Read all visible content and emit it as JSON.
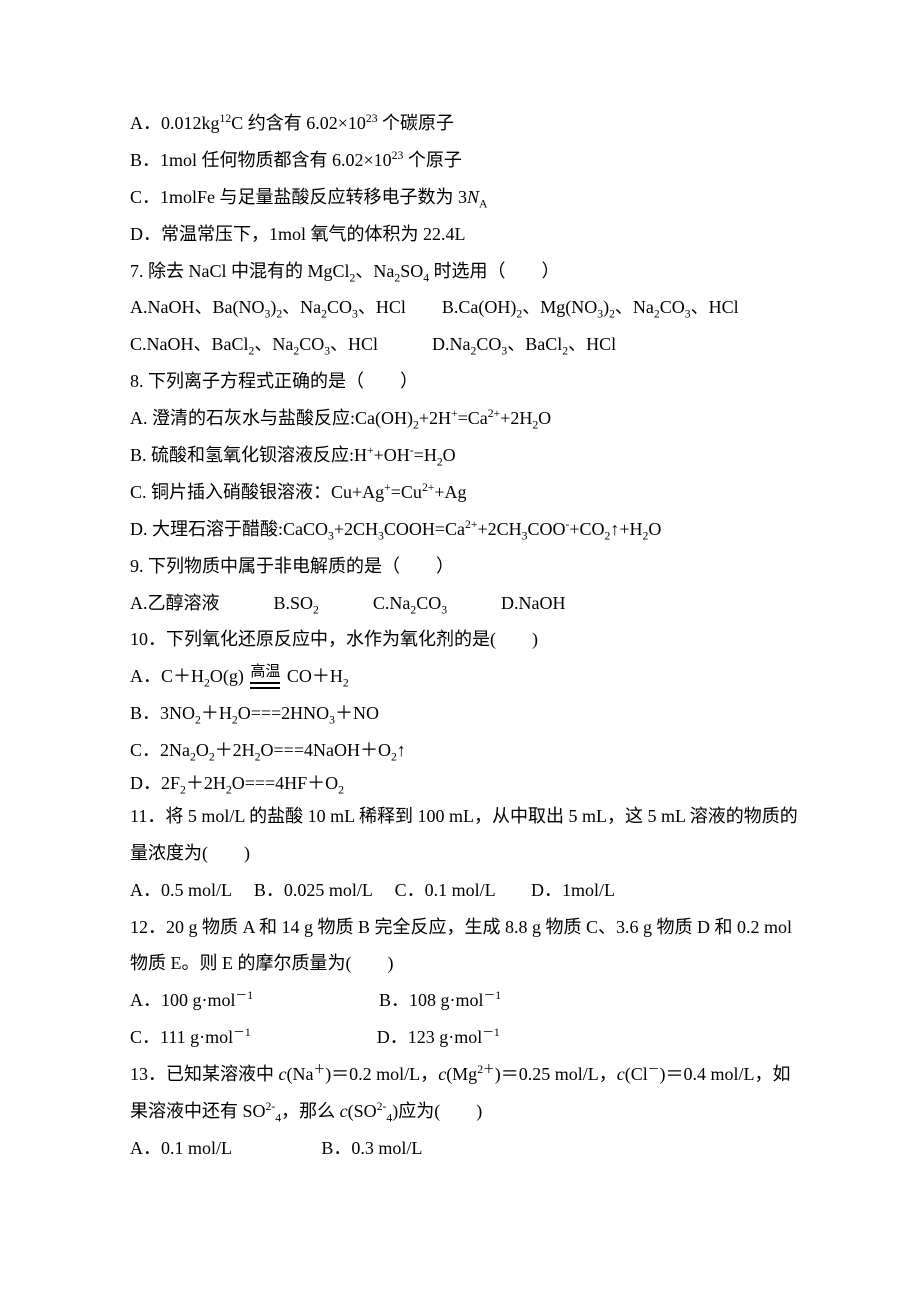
{
  "q6": {
    "optA": "A．0.012kg<sup>12</sup>C 约含有 6.02×10<sup>23</sup> 个碳原子",
    "optB": "B．1mol 任何物质都含有 6.02×10<sup>23</sup> 个原子",
    "optC": "C．1molFe 与足量盐酸反应转移电子数为 3<span class=\"italic\">N</span><sub>A</sub>",
    "optD": "D．常温常压下，1mol 氧气的体积为 22.4L"
  },
  "q7": {
    "stem": "7. 除去 NaCl 中混有的 MgCl<sub>2</sub>、Na<sub>2</sub>SO<sub>4</sub> 时选用（　　）",
    "row1": "A.NaOH、Ba(NO<sub>3</sub>)<sub>2</sub>、Na<sub>2</sub>CO<sub>3</sub>、HCl　　B.Ca(OH)<sub>2</sub>、Mg(NO<sub>3</sub>)<sub>2</sub>、Na<sub>2</sub>CO<sub>3</sub>、HCl",
    "row2": "C.NaOH、BaCl<sub>2</sub>、Na<sub>2</sub>CO<sub>3</sub>、HCl　　　D.Na<sub>2</sub>CO<sub>3</sub>、BaCl<sub>2</sub>、HCl"
  },
  "q8": {
    "stem": "8. 下列离子方程式正确的是（　　）",
    "optA": "A. 澄清的石灰水与盐酸反应:Ca(OH)<sub>2</sub>+2H<sup>+</sup>=Ca<sup>2+</sup>+2H<sub>2</sub>O",
    "optB": "B. 硫酸和氢氧化钡溶液反应:H<sup>+</sup>+OH<sup>-</sup>=H<sub>2</sub>O",
    "optC": "C. 铜片插入硝酸银溶液：Cu+Ag<sup>+</sup>=Cu<sup>2+</sup>+Ag",
    "optD": "D. 大理石溶于醋酸:CaCO<sub>3</sub>+2CH<sub>3</sub>COOH=Ca<sup>2+</sup>+2CH<sub>3</sub>COO<sup>-</sup>+CO<sub>2</sub>↑+H<sub>2</sub>O"
  },
  "q9": {
    "stem": "9. 下列物质中属于非电解质的是（　　）",
    "opts": "A.乙醇溶液　　　B.SO<sub>2</sub>　　　C.Na<sub>2</sub>CO<sub>3</sub>　　　D.NaOH"
  },
  "q10": {
    "stem": "10．下列氧化还原反应中，水作为氧化剂的是(　　)",
    "optA_pre": "A．C＋H<sub>2</sub>O(g) ",
    "optA_cond": "高温",
    "optA_post": " CO＋H<sub>2</sub>",
    "optB": "B．3NO<sub>2</sub>＋H<sub>2</sub>O===2HNO<sub>3</sub>＋NO",
    "optC": "C．2Na<sub>2</sub>O<sub>2</sub>＋2H<sub>2</sub>O===4NaOH＋O<sub>2</sub>↑",
    "optD": "D．2F<sub>2</sub>＋2H<sub>2</sub>O===4HF＋O<sub>2</sub>"
  },
  "q11": {
    "stem": "11．将 5 mol/L 的盐酸 10 mL 稀释到 100 mL，从中取出 5 mL，这 5 mL 溶液的物质的量浓度为(　　)",
    "opts": "A．0.5 mol/L　 B．0.025 mol/L　  C．0.1 mol/L　　D．1mol/L"
  },
  "q12": {
    "stem": "12．20 g 物质 A 和 14 g 物质 B 完全反应，生成 8.8 g 物质 C、3.6 g 物质 D 和 0.2 mol 物质 E。则 E 的摩尔质量为(　　)",
    "row1": "A．100 g·mol<sup>－1</sup>　　　　　　　B．108 g·mol<sup>－1</sup>",
    "row2": "C．111 g·mol<sup>－1</sup>　　　　　　　D．123 g·mol<sup>－1</sup>"
  },
  "q13": {
    "stem": "13．已知某溶液中 <span class=\"italic\">c</span>(Na<sup>＋</sup>)＝0.2 mol/L，<span class=\"italic\">c</span>(Mg<sup>2＋</sup>)＝0.25 mol/L，<span class=\"italic\">c</span>(Cl<sup>－</sup>)＝0.4 mol/L，如果溶液中还有 SO<sup>2-</sup><sub>4</sub>，那么 <span class=\"italic\">c</span>(SO<sup>2-</sup><sub>4</sub>)应为(　　)",
    "opts": "A．0.1 mol/L　　　　　B．0.3 mol/L"
  }
}
